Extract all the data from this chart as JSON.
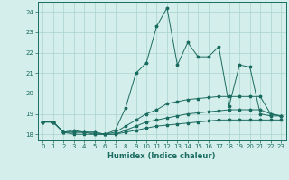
{
  "xlabel": "Humidex (Indice chaleur)",
  "background_color": "#d4eeeb",
  "grid_color": "#aad4cf",
  "line_color": "#1a6b60",
  "xlim": [
    -0.5,
    23.5
  ],
  "ylim": [
    17.7,
    24.5
  ],
  "yticks": [
    18,
    19,
    20,
    21,
    22,
    23,
    24
  ],
  "xticks": [
    0,
    1,
    2,
    3,
    4,
    5,
    6,
    7,
    8,
    9,
    10,
    11,
    12,
    13,
    14,
    15,
    16,
    17,
    18,
    19,
    20,
    21,
    22,
    23
  ],
  "series": [
    [
      18.6,
      18.6,
      18.1,
      18.2,
      18.1,
      18.1,
      18.0,
      18.2,
      19.3,
      21.0,
      21.5,
      23.3,
      24.2,
      21.4,
      22.5,
      21.8,
      21.8,
      22.3,
      19.4,
      21.4,
      21.3,
      19.0,
      18.9,
      18.9
    ],
    [
      18.6,
      18.6,
      18.1,
      18.1,
      18.1,
      18.1,
      18.0,
      18.1,
      18.4,
      18.7,
      19.0,
      19.2,
      19.5,
      19.6,
      19.7,
      19.75,
      19.8,
      19.85,
      19.85,
      19.85,
      19.85,
      19.85,
      19.0,
      18.9
    ],
    [
      18.6,
      18.6,
      18.1,
      18.1,
      18.1,
      18.0,
      18.0,
      18.0,
      18.2,
      18.4,
      18.6,
      18.7,
      18.8,
      18.9,
      19.0,
      19.05,
      19.1,
      19.15,
      19.2,
      19.2,
      19.2,
      19.2,
      19.0,
      18.9
    ],
    [
      18.6,
      18.6,
      18.1,
      18.0,
      18.0,
      18.0,
      18.0,
      18.0,
      18.1,
      18.2,
      18.3,
      18.4,
      18.45,
      18.5,
      18.55,
      18.6,
      18.65,
      18.7,
      18.7,
      18.7,
      18.7,
      18.7,
      18.7,
      18.7
    ]
  ],
  "markers": [
    "*",
    "*",
    "*",
    "*"
  ],
  "markersize": [
    2.5,
    2.5,
    2.5,
    2.5
  ],
  "linewidth": 0.7
}
